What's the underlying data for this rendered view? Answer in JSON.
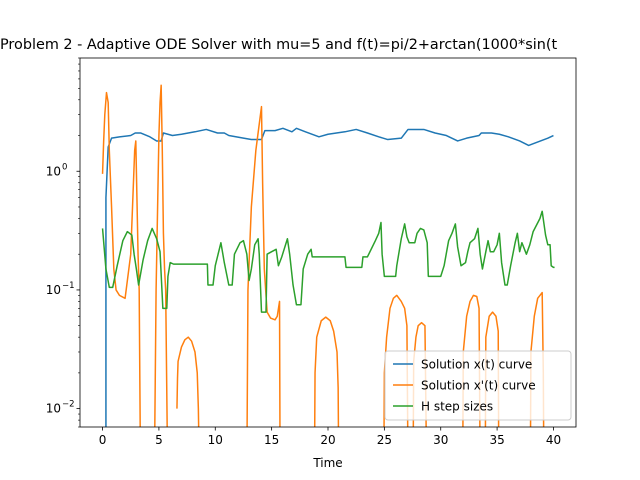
{
  "chart_data": {
    "type": "line",
    "title": "Problem 2 - Adaptive ODE Solver with mu=5 and f(t)=pi/2+arctan(1000*sin(t",
    "xlabel": "Time",
    "ylabel": "",
    "yscale": "log",
    "xlim": [
      -2,
      42
    ],
    "ylim": [
      0.007,
      9
    ],
    "x_ticks": [
      {
        "value": 0,
        "label": "0"
      },
      {
        "value": 5,
        "label": "5"
      },
      {
        "value": 10,
        "label": "10"
      },
      {
        "value": 15,
        "label": "15"
      },
      {
        "value": 20,
        "label": "20"
      },
      {
        "value": 25,
        "label": "25"
      },
      {
        "value": 30,
        "label": "30"
      },
      {
        "value": 35,
        "label": "35"
      },
      {
        "value": 40,
        "label": "40"
      }
    ],
    "y_ticks": [
      {
        "value": 0.01,
        "base": "10",
        "exp": "−2"
      },
      {
        "value": 0.1,
        "base": "10",
        "exp": "−1"
      },
      {
        "value": 1,
        "base": "10",
        "exp": "0"
      }
    ],
    "grid": false,
    "legend_position": "lower-right",
    "series": [
      {
        "name": "Solution x(t) curve",
        "color": "#1f77b4",
        "points": [
          [
            0.3,
            0.005
          ],
          [
            0.3,
            0.6
          ],
          [
            0.5,
            1.6
          ],
          [
            0.8,
            1.9
          ],
          [
            1.5,
            1.95
          ],
          [
            2.5,
            2.0
          ],
          [
            2.9,
            2.1
          ],
          [
            3.4,
            2.1
          ],
          [
            4.2,
            1.95
          ],
          [
            4.8,
            1.8
          ],
          [
            5.2,
            1.8
          ],
          [
            5.4,
            2.1
          ],
          [
            6.2,
            2.0
          ],
          [
            7.0,
            2.05
          ],
          [
            8.2,
            2.15
          ],
          [
            9.2,
            2.25
          ],
          [
            10.2,
            2.1
          ],
          [
            10.8,
            2.1
          ],
          [
            11.2,
            2.0
          ],
          [
            12.5,
            1.9
          ],
          [
            13.2,
            1.85
          ],
          [
            14.1,
            1.85
          ],
          [
            14.4,
            2.2
          ],
          [
            15.3,
            2.2
          ],
          [
            16.0,
            2.3
          ],
          [
            16.8,
            2.15
          ],
          [
            17.2,
            2.3
          ],
          [
            18.0,
            2.15
          ],
          [
            19.2,
            1.95
          ],
          [
            20.0,
            2.05
          ],
          [
            21.5,
            2.15
          ],
          [
            22.5,
            2.25
          ],
          [
            23.5,
            2.1
          ],
          [
            24.5,
            1.95
          ],
          [
            25.3,
            1.85
          ],
          [
            26.5,
            1.9
          ],
          [
            27.1,
            2.25
          ],
          [
            28.5,
            2.25
          ],
          [
            29.5,
            2.1
          ],
          [
            30.5,
            2.0
          ],
          [
            31.5,
            1.8
          ],
          [
            32.3,
            1.9
          ],
          [
            33.4,
            2.0
          ],
          [
            33.6,
            2.1
          ],
          [
            34.5,
            2.1
          ],
          [
            35.2,
            2.05
          ],
          [
            36.0,
            1.95
          ],
          [
            37.0,
            1.8
          ],
          [
            37.8,
            1.65
          ],
          [
            38.5,
            1.75
          ],
          [
            39.5,
            1.9
          ],
          [
            40.0,
            2.0
          ]
        ]
      },
      {
        "name": "Solution x'(t) curve",
        "color": "#ff7f0e",
        "points": [
          [
            0.0,
            0.95
          ],
          [
            0.1,
            1.8
          ],
          [
            0.2,
            3.0
          ],
          [
            0.35,
            4.6
          ],
          [
            0.5,
            3.8
          ],
          [
            0.6,
            1.5
          ],
          [
            0.8,
            0.5
          ],
          [
            1.0,
            0.15
          ],
          [
            1.2,
            0.1
          ],
          [
            1.5,
            0.09
          ],
          [
            2.0,
            0.085
          ],
          [
            2.5,
            0.2
          ],
          [
            2.85,
            1.5
          ],
          [
            2.95,
            1.8
          ],
          [
            3.05,
            0.6
          ],
          [
            3.15,
            0.2
          ],
          [
            3.25,
            0.1
          ],
          [
            3.35,
            0.005
          ],
          null,
          [
            4.6,
            0.003
          ],
          [
            4.75,
            0.1
          ],
          [
            4.9,
            0.6
          ],
          [
            5.0,
            2.0
          ],
          [
            5.1,
            3.8
          ],
          [
            5.2,
            5.3
          ],
          [
            5.3,
            1.5
          ],
          [
            5.4,
            0.3
          ],
          [
            5.5,
            0.15
          ],
          [
            5.6,
            0.1
          ],
          [
            5.75,
            0.005
          ],
          null,
          [
            6.6,
            0.01
          ],
          [
            6.65,
            0.018
          ],
          [
            6.7,
            0.025
          ],
          [
            7.0,
            0.033
          ],
          [
            7.3,
            0.038
          ],
          [
            7.6,
            0.04
          ],
          [
            7.9,
            0.037
          ],
          [
            8.2,
            0.03
          ],
          [
            8.4,
            0.02
          ],
          [
            8.5,
            0.01
          ],
          [
            8.55,
            0.005
          ],
          null,
          [
            12.8,
            0.003
          ],
          [
            12.9,
            0.1
          ],
          [
            13.2,
            0.5
          ],
          [
            13.6,
            1.5
          ],
          [
            14.1,
            3.5
          ],
          [
            14.2,
            0.8
          ],
          [
            14.35,
            0.15
          ],
          [
            14.6,
            0.065
          ],
          [
            14.9,
            0.058
          ],
          [
            15.3,
            0.056
          ],
          [
            15.5,
            0.06
          ],
          [
            15.7,
            0.08
          ],
          [
            15.75,
            0.003
          ],
          null,
          [
            18.8,
            0.003
          ],
          [
            18.85,
            0.02
          ],
          [
            19.0,
            0.04
          ],
          [
            19.4,
            0.055
          ],
          [
            19.8,
            0.059
          ],
          [
            20.2,
            0.055
          ],
          [
            20.5,
            0.045
          ],
          [
            20.8,
            0.03
          ],
          [
            20.9,
            0.015
          ],
          [
            20.95,
            0.003
          ],
          null,
          [
            24.95,
            0.003
          ],
          [
            25.0,
            0.02
          ],
          [
            25.2,
            0.04
          ],
          [
            25.5,
            0.07
          ],
          [
            25.8,
            0.085
          ],
          [
            26.1,
            0.09
          ],
          [
            26.5,
            0.08
          ],
          [
            26.8,
            0.07
          ],
          [
            27.0,
            0.05
          ],
          [
            27.1,
            0.003
          ],
          null,
          [
            27.55,
            0.003
          ],
          [
            27.6,
            0.025
          ],
          [
            27.8,
            0.04
          ],
          [
            28.0,
            0.05
          ],
          [
            28.3,
            0.053
          ],
          [
            28.6,
            0.05
          ],
          [
            28.75,
            0.003
          ],
          null,
          [
            31.95,
            0.003
          ],
          [
            32.0,
            0.03
          ],
          [
            32.3,
            0.06
          ],
          [
            32.6,
            0.08
          ],
          [
            32.9,
            0.09
          ],
          [
            33.2,
            0.088
          ],
          [
            33.4,
            0.07
          ],
          [
            33.5,
            0.003
          ],
          null,
          [
            33.95,
            0.003
          ],
          [
            34.0,
            0.04
          ],
          [
            34.3,
            0.06
          ],
          [
            34.6,
            0.065
          ],
          [
            34.9,
            0.06
          ],
          [
            35.1,
            0.045
          ],
          [
            35.15,
            0.003
          ],
          null,
          [
            37.95,
            0.003
          ],
          [
            38.0,
            0.03
          ],
          [
            38.3,
            0.06
          ],
          [
            38.6,
            0.085
          ],
          [
            39.0,
            0.095
          ],
          [
            39.1,
            0.02
          ],
          [
            39.15,
            0.003
          ]
        ]
      },
      {
        "name": "H step sizes",
        "color": "#2ca02c",
        "points": [
          [
            0.0,
            0.33
          ],
          [
            0.3,
            0.15
          ],
          [
            0.6,
            0.105
          ],
          [
            0.9,
            0.105
          ],
          [
            1.3,
            0.16
          ],
          [
            1.8,
            0.26
          ],
          [
            2.2,
            0.31
          ],
          [
            2.6,
            0.29
          ],
          [
            2.8,
            0.2
          ],
          [
            3.0,
            0.15
          ],
          [
            3.2,
            0.11
          ],
          [
            3.6,
            0.18
          ],
          [
            4.0,
            0.26
          ],
          [
            4.4,
            0.33
          ],
          [
            4.8,
            0.27
          ],
          [
            5.1,
            0.21
          ],
          [
            5.35,
            0.07
          ],
          [
            5.7,
            0.07
          ],
          [
            5.8,
            0.13
          ],
          [
            6.0,
            0.17
          ],
          [
            6.3,
            0.165
          ],
          [
            7.5,
            0.165
          ],
          [
            8.8,
            0.165
          ],
          [
            9.3,
            0.165
          ],
          [
            9.35,
            0.11
          ],
          [
            9.8,
            0.11
          ],
          [
            10.0,
            0.16
          ],
          [
            10.5,
            0.25
          ],
          [
            10.8,
            0.17
          ],
          [
            11.2,
            0.11
          ],
          [
            11.5,
            0.11
          ],
          [
            11.7,
            0.2
          ],
          [
            12.2,
            0.25
          ],
          [
            12.5,
            0.26
          ],
          [
            12.8,
            0.2
          ],
          [
            13.0,
            0.12
          ],
          [
            13.2,
            0.15
          ],
          [
            13.5,
            0.24
          ],
          [
            13.8,
            0.27
          ],
          [
            13.9,
            0.2
          ],
          [
            14.1,
            0.065
          ],
          [
            14.5,
            0.065
          ],
          [
            14.6,
            0.2
          ],
          [
            15.0,
            0.21
          ],
          [
            15.4,
            0.22
          ],
          [
            15.6,
            0.16
          ],
          [
            15.9,
            0.19
          ],
          [
            16.4,
            0.27
          ],
          [
            16.6,
            0.2
          ],
          [
            16.9,
            0.11
          ],
          [
            17.2,
            0.075
          ],
          [
            17.6,
            0.075
          ],
          [
            17.8,
            0.15
          ],
          [
            18.2,
            0.2
          ],
          [
            18.5,
            0.22
          ],
          [
            18.6,
            0.19
          ],
          [
            19.5,
            0.19
          ],
          [
            20.2,
            0.19
          ],
          [
            21.2,
            0.19
          ],
          [
            21.5,
            0.19
          ],
          [
            21.6,
            0.155
          ],
          [
            22.5,
            0.155
          ],
          [
            23.0,
            0.155
          ],
          [
            23.1,
            0.19
          ],
          [
            23.5,
            0.19
          ],
          [
            24.2,
            0.26
          ],
          [
            24.5,
            0.3
          ],
          [
            24.7,
            0.37
          ],
          [
            24.8,
            0.2
          ],
          [
            25.0,
            0.13
          ],
          [
            25.5,
            0.13
          ],
          [
            26.0,
            0.13
          ],
          [
            26.1,
            0.16
          ],
          [
            26.5,
            0.27
          ],
          [
            26.8,
            0.36
          ],
          [
            27.0,
            0.28
          ],
          [
            27.2,
            0.25
          ],
          [
            27.7,
            0.25
          ],
          [
            27.9,
            0.3
          ],
          [
            28.2,
            0.33
          ],
          [
            28.5,
            0.32
          ],
          [
            28.8,
            0.25
          ],
          [
            28.9,
            0.13
          ],
          [
            29.5,
            0.13
          ],
          [
            30.0,
            0.13
          ],
          [
            30.3,
            0.16
          ],
          [
            30.7,
            0.26
          ],
          [
            31.0,
            0.3
          ],
          [
            31.3,
            0.36
          ],
          [
            31.5,
            0.23
          ],
          [
            31.8,
            0.16
          ],
          [
            32.2,
            0.17
          ],
          [
            32.4,
            0.21
          ],
          [
            32.6,
            0.25
          ],
          [
            33.0,
            0.27
          ],
          [
            33.3,
            0.33
          ],
          [
            33.5,
            0.2
          ],
          [
            33.7,
            0.15
          ],
          [
            34.0,
            0.21
          ],
          [
            34.2,
            0.26
          ],
          [
            34.4,
            0.21
          ],
          [
            34.7,
            0.21
          ],
          [
            35.0,
            0.24
          ],
          [
            35.2,
            0.3
          ],
          [
            35.4,
            0.17
          ],
          [
            35.7,
            0.11
          ],
          [
            35.9,
            0.11
          ],
          [
            36.2,
            0.16
          ],
          [
            36.6,
            0.25
          ],
          [
            36.8,
            0.3
          ],
          [
            37.0,
            0.21
          ],
          [
            37.2,
            0.25
          ],
          [
            37.6,
            0.2
          ],
          [
            37.9,
            0.24
          ],
          [
            38.2,
            0.31
          ],
          [
            38.8,
            0.4
          ],
          [
            39.0,
            0.46
          ],
          [
            39.3,
            0.29
          ],
          [
            39.5,
            0.24
          ],
          [
            39.7,
            0.24
          ],
          [
            39.8,
            0.16
          ],
          [
            40.0,
            0.155
          ],
          [
            40.1,
            0.155
          ]
        ]
      }
    ]
  }
}
